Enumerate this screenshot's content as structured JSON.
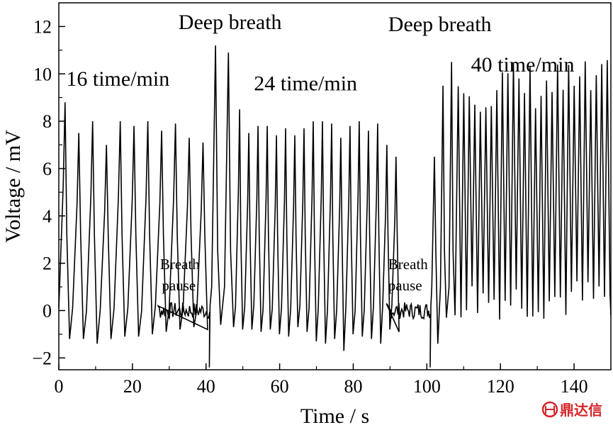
{
  "chart_data": {
    "type": "line",
    "xlabel": "Time / s",
    "ylabel": "Voltage / mV",
    "xlim": [
      0,
      150
    ],
    "ylim": [
      -2.5,
      13
    ],
    "x_ticks": [
      0,
      20,
      40,
      60,
      80,
      100,
      120,
      140
    ],
    "y_ticks": [
      -2,
      0,
      2,
      4,
      6,
      8,
      10,
      12
    ],
    "x_tick_labels": [
      "0",
      "20",
      "40",
      "60",
      "80",
      "100",
      "120",
      "140"
    ],
    "y_tick_labels": [
      "−2",
      "0",
      "2",
      "4",
      "6",
      "8",
      "10",
      "12"
    ],
    "grid": false,
    "series": [
      {
        "color": "#000000",
        "segments": [
          {
            "label": "16 time/min",
            "t_start": 0,
            "t_end": 27,
            "period": 3.75,
            "peaks": [
              8.8,
              7.5,
              8.0,
              7.0,
              8.0,
              7.8,
              8.0,
              7.6,
              7.9,
              7.3,
              7.1
            ],
            "troughs": [
              -1.2,
              -1.2,
              -1.4,
              -1.2,
              -1.1,
              -1.1,
              -1.0,
              -0.9,
              -0.8,
              -0.7,
              -0.8
            ]
          },
          {
            "label": "Breath pause",
            "t_start": 27,
            "t_end": 41,
            "baseline": 0.0,
            "noise": 0.35,
            "dip": -2.4
          },
          {
            "label": "Deep breath",
            "t_start": 41,
            "t_end": 48,
            "peaks": [
              11.2,
              10.9
            ],
            "troughs": [
              -0.6,
              -0.7
            ]
          },
          {
            "label": "24 time/min",
            "t_start": 48,
            "t_end": 89,
            "period": 2.5,
            "peaks": [
              8.5,
              7.5,
              7.8,
              7.8,
              7.4,
              7.7,
              7.4,
              7.7,
              8.0,
              8.0,
              7.9,
              7.3,
              7.8,
              8.0,
              7.6,
              7.9,
              7.0,
              6.5
            ],
            "troughs": [
              -0.8,
              -0.8,
              -0.9,
              -0.8,
              -1.0,
              -1.1,
              -0.7,
              -0.9,
              -1.3,
              -1.4,
              -1.2,
              -1.7,
              -1.0,
              -1.1,
              -1.2,
              -1.4,
              -0.8,
              -0.9
            ]
          },
          {
            "label": "Breath pause",
            "t_start": 89,
            "t_end": 101,
            "baseline": 0.0,
            "noise": 0.35,
            "dip": -2.4
          },
          {
            "label": "Deep breath",
            "t_start": 101,
            "t_end": 108,
            "peaks": [
              6.5,
              9.5,
              10.5
            ],
            "troughs": [
              -1.4,
              -0.3,
              -0.2
            ]
          },
          {
            "label": "40 time/min",
            "t_start": 108,
            "t_end": 150,
            "period": 1.5,
            "peak_range": [
              8.4,
              10.6
            ],
            "trough_range": [
              -0.4,
              1.4
            ]
          }
        ]
      }
    ],
    "annotations": [
      {
        "text": "16 time/min",
        "x": 2,
        "y": 9.5
      },
      {
        "text": "Deep breath",
        "x": 32.5,
        "y": 11.9
      },
      {
        "text": "24 time/min",
        "x": 53,
        "y": 9.3
      },
      {
        "text": "Breath",
        "x": 27.5,
        "y": 1.75
      },
      {
        "text": "pause",
        "x": 28,
        "y": 0.85
      },
      {
        "text": "Deep breath",
        "x": 89.5,
        "y": 11.8
      },
      {
        "text": "40 time/min",
        "x": 112,
        "y": 10.1
      },
      {
        "text": "Breath",
        "x": 89.5,
        "y": 1.75
      },
      {
        "text": "pause",
        "x": 89.5,
        "y": 0.85
      }
    ]
  },
  "watermark": {
    "text": "鼎达信",
    "icon": "ding-logo-icon"
  }
}
